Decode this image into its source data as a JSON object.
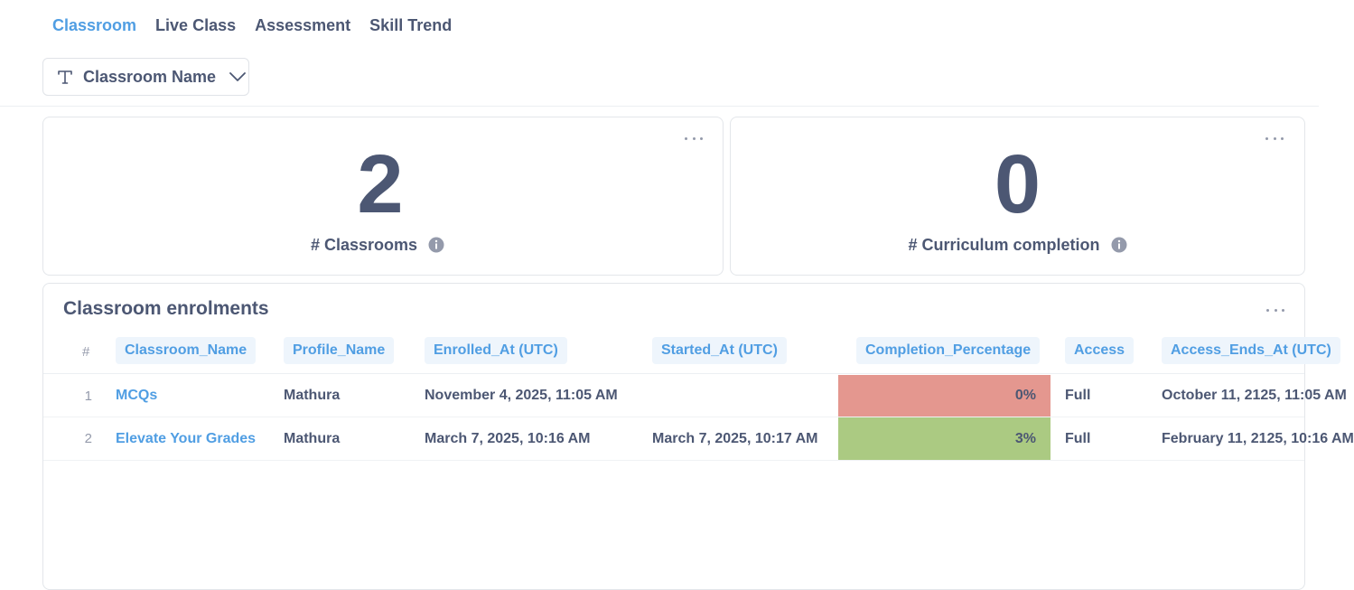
{
  "tabs": [
    {
      "label": "Classroom",
      "active": true
    },
    {
      "label": "Live Class",
      "active": false
    },
    {
      "label": "Assessment",
      "active": false
    },
    {
      "label": "Skill Trend",
      "active": false
    }
  ],
  "filter": {
    "label": "Classroom Name",
    "icon": "text-type-icon"
  },
  "scalars": [
    {
      "value": "2",
      "title": "# Classrooms"
    },
    {
      "value": "0",
      "title": "# Curriculum completion"
    }
  ],
  "table": {
    "title": "Classroom enrolments",
    "index_header": "#",
    "columns": [
      "Classroom_Name",
      "Profile_Name",
      "Enrolled_At (UTC)",
      "Started_At (UTC)",
      "Completion_Percentage",
      "Access",
      "Access_Ends_At (UTC)"
    ],
    "rows": [
      {
        "index": "1",
        "classroom": "MCQs",
        "profile": "Mathura",
        "enrolled": "November 4, 2025, 11:05 AM",
        "started": "",
        "completion": "0%",
        "access": "Full",
        "access_ends": "October 11, 2125, 11:05 AM"
      },
      {
        "index": "2",
        "classroom": "Elevate Your Grades",
        "profile": "Mathura",
        "enrolled": "March 7, 2025, 10:16 AM",
        "started": "March 7, 2025, 10:17 AM",
        "completion": "3%",
        "access": "Full",
        "access_ends": "February 11, 2125, 10:16 AM"
      }
    ]
  },
  "colors": {
    "accent": "#509ee3",
    "text": "#4c5773",
    "low": "#e4978f",
    "high": "#abca82"
  }
}
